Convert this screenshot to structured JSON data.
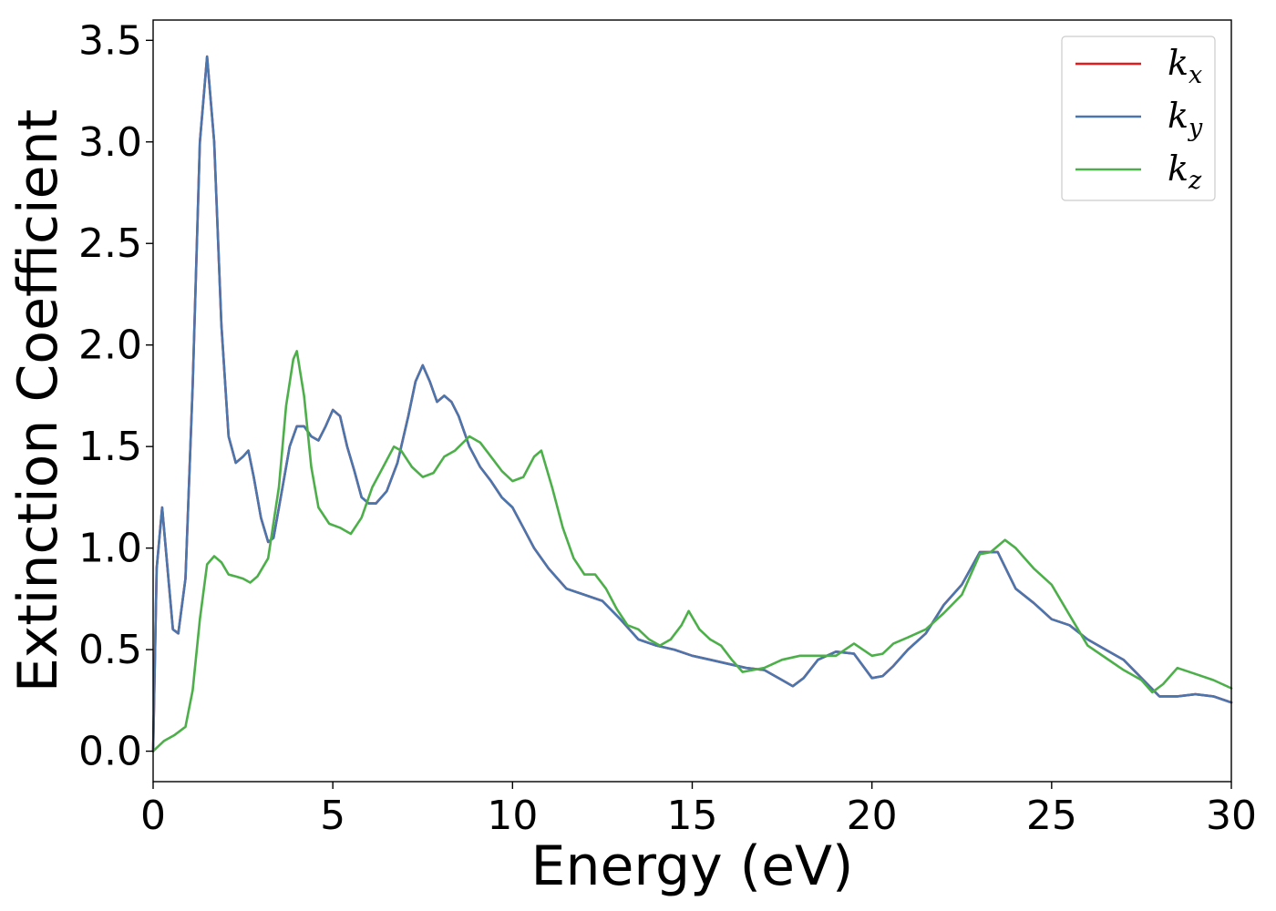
{
  "chart_data": {
    "type": "line",
    "xlabel": "Energy (eV)",
    "ylabel": "Extinction Coefficient",
    "xlim": [
      0,
      30
    ],
    "ylim": [
      -0.15,
      3.6
    ],
    "xticks": [
      0,
      5,
      10,
      15,
      20,
      25,
      30
    ],
    "xtick_labels": [
      "0",
      "5",
      "10",
      "15",
      "20",
      "25",
      "30"
    ],
    "yticks": [
      0.0,
      0.5,
      1.0,
      1.5,
      2.0,
      2.5,
      3.0,
      3.5
    ],
    "ytick_labels": [
      "0.0",
      "0.5",
      "1.0",
      "1.5",
      "2.0",
      "2.5",
      "3.0",
      "3.5"
    ],
    "grid": false,
    "legend_position": "top-right",
    "series": [
      {
        "name": "k",
        "subscript": "x",
        "color": "#e41a1c",
        "x": [
          0,
          0.1,
          0.25,
          0.4,
          0.55,
          0.7,
          0.9,
          1.1,
          1.3,
          1.5,
          1.7,
          1.9,
          2.1,
          2.3,
          2.5,
          2.65,
          2.8,
          3.0,
          3.2,
          3.35,
          3.6,
          3.8,
          4.0,
          4.2,
          4.4,
          4.6,
          4.8,
          5.0,
          5.2,
          5.4,
          5.6,
          5.8,
          6.0,
          6.2,
          6.5,
          6.8,
          7.1,
          7.3,
          7.5,
          7.7,
          7.9,
          8.1,
          8.3,
          8.5,
          8.8,
          9.1,
          9.4,
          9.7,
          10.0,
          10.3,
          10.6,
          11.0,
          11.5,
          12.0,
          12.5,
          13.0,
          13.5,
          14.0,
          14.5,
          15.0,
          15.5,
          16.0,
          16.5,
          17.0,
          17.5,
          17.8,
          18.1,
          18.5,
          19.0,
          19.5,
          20.0,
          20.3,
          20.6,
          21.0,
          21.5,
          22.0,
          22.5,
          23.0,
          23.5,
          24.0,
          24.5,
          25.0,
          25.5,
          26.0,
          26.5,
          27.0,
          27.5,
          28.0,
          28.5,
          29.0,
          29.5,
          30.0
        ],
        "y": [
          0.0,
          0.9,
          1.2,
          0.9,
          0.6,
          0.58,
          0.85,
          1.8,
          3.0,
          3.42,
          3.0,
          2.1,
          1.55,
          1.42,
          1.45,
          1.48,
          1.35,
          1.15,
          1.03,
          1.05,
          1.3,
          1.5,
          1.6,
          1.6,
          1.55,
          1.53,
          1.6,
          1.68,
          1.65,
          1.5,
          1.38,
          1.25,
          1.22,
          1.22,
          1.28,
          1.42,
          1.65,
          1.82,
          1.9,
          1.82,
          1.72,
          1.75,
          1.72,
          1.65,
          1.5,
          1.4,
          1.33,
          1.25,
          1.2,
          1.1,
          1.0,
          0.9,
          0.8,
          0.77,
          0.74,
          0.65,
          0.55,
          0.52,
          0.5,
          0.47,
          0.45,
          0.43,
          0.41,
          0.4,
          0.35,
          0.32,
          0.36,
          0.45,
          0.49,
          0.48,
          0.36,
          0.37,
          0.42,
          0.5,
          0.58,
          0.72,
          0.82,
          0.98,
          0.98,
          0.8,
          0.73,
          0.65,
          0.62,
          0.55,
          0.5,
          0.45,
          0.36,
          0.27,
          0.27,
          0.28,
          0.27,
          0.24
        ]
      },
      {
        "name": "k",
        "subscript": "y",
        "color": "#4a76ad",
        "x": [
          0,
          0.1,
          0.25,
          0.4,
          0.55,
          0.7,
          0.9,
          1.1,
          1.3,
          1.5,
          1.7,
          1.9,
          2.1,
          2.3,
          2.5,
          2.65,
          2.8,
          3.0,
          3.2,
          3.35,
          3.6,
          3.8,
          4.0,
          4.2,
          4.4,
          4.6,
          4.8,
          5.0,
          5.2,
          5.4,
          5.6,
          5.8,
          6.0,
          6.2,
          6.5,
          6.8,
          7.1,
          7.3,
          7.5,
          7.7,
          7.9,
          8.1,
          8.3,
          8.5,
          8.8,
          9.1,
          9.4,
          9.7,
          10.0,
          10.3,
          10.6,
          11.0,
          11.5,
          12.0,
          12.5,
          13.0,
          13.5,
          14.0,
          14.5,
          15.0,
          15.5,
          16.0,
          16.5,
          17.0,
          17.5,
          17.8,
          18.1,
          18.5,
          19.0,
          19.5,
          20.0,
          20.3,
          20.6,
          21.0,
          21.5,
          22.0,
          22.5,
          23.0,
          23.5,
          24.0,
          24.5,
          25.0,
          25.5,
          26.0,
          26.5,
          27.0,
          27.5,
          28.0,
          28.5,
          29.0,
          29.5,
          30.0
        ],
        "y": [
          0.0,
          0.9,
          1.2,
          0.9,
          0.6,
          0.58,
          0.85,
          1.8,
          3.0,
          3.42,
          3.0,
          2.1,
          1.55,
          1.42,
          1.45,
          1.48,
          1.35,
          1.15,
          1.03,
          1.05,
          1.3,
          1.5,
          1.6,
          1.6,
          1.55,
          1.53,
          1.6,
          1.68,
          1.65,
          1.5,
          1.38,
          1.25,
          1.22,
          1.22,
          1.28,
          1.42,
          1.65,
          1.82,
          1.9,
          1.82,
          1.72,
          1.75,
          1.72,
          1.65,
          1.5,
          1.4,
          1.33,
          1.25,
          1.2,
          1.1,
          1.0,
          0.9,
          0.8,
          0.77,
          0.74,
          0.65,
          0.55,
          0.52,
          0.5,
          0.47,
          0.45,
          0.43,
          0.41,
          0.4,
          0.35,
          0.32,
          0.36,
          0.45,
          0.49,
          0.48,
          0.36,
          0.37,
          0.42,
          0.5,
          0.58,
          0.72,
          0.82,
          0.98,
          0.98,
          0.8,
          0.73,
          0.65,
          0.62,
          0.55,
          0.5,
          0.45,
          0.36,
          0.27,
          0.27,
          0.28,
          0.27,
          0.24
        ]
      },
      {
        "name": "k",
        "subscript": "z",
        "color": "#4daf4a",
        "x": [
          0,
          0.3,
          0.6,
          0.9,
          1.1,
          1.3,
          1.5,
          1.7,
          1.9,
          2.1,
          2.3,
          2.5,
          2.7,
          2.9,
          3.2,
          3.5,
          3.7,
          3.9,
          4.0,
          4.2,
          4.4,
          4.6,
          4.9,
          5.2,
          5.5,
          5.8,
          6.1,
          6.4,
          6.7,
          6.9,
          7.2,
          7.5,
          7.8,
          8.1,
          8.4,
          8.8,
          9.1,
          9.4,
          9.7,
          10.0,
          10.3,
          10.6,
          10.8,
          11.1,
          11.4,
          11.7,
          12.0,
          12.3,
          12.6,
          12.9,
          13.2,
          13.5,
          13.8,
          14.1,
          14.4,
          14.7,
          14.9,
          15.2,
          15.5,
          15.8,
          16.1,
          16.4,
          16.7,
          17.0,
          17.5,
          18.0,
          18.5,
          19.0,
          19.5,
          20.0,
          20.3,
          20.6,
          21.0,
          21.5,
          22.0,
          22.5,
          23.0,
          23.3,
          23.7,
          24.0,
          24.5,
          25.0,
          25.5,
          26.0,
          26.5,
          27.0,
          27.5,
          27.8,
          28.1,
          28.5,
          29.0,
          29.5,
          30.0
        ],
        "y": [
          0.0,
          0.05,
          0.08,
          0.12,
          0.3,
          0.65,
          0.92,
          0.96,
          0.93,
          0.87,
          0.86,
          0.85,
          0.83,
          0.86,
          0.95,
          1.3,
          1.7,
          1.93,
          1.97,
          1.75,
          1.4,
          1.2,
          1.12,
          1.1,
          1.07,
          1.15,
          1.3,
          1.4,
          1.5,
          1.48,
          1.4,
          1.35,
          1.37,
          1.45,
          1.48,
          1.55,
          1.52,
          1.45,
          1.38,
          1.33,
          1.35,
          1.45,
          1.48,
          1.3,
          1.1,
          0.95,
          0.87,
          0.87,
          0.8,
          0.7,
          0.62,
          0.6,
          0.55,
          0.52,
          0.55,
          0.62,
          0.69,
          0.6,
          0.55,
          0.52,
          0.45,
          0.39,
          0.4,
          0.41,
          0.45,
          0.47,
          0.47,
          0.47,
          0.53,
          0.47,
          0.48,
          0.53,
          0.56,
          0.6,
          0.68,
          0.77,
          0.97,
          0.98,
          1.04,
          1.0,
          0.9,
          0.82,
          0.67,
          0.52,
          0.46,
          0.4,
          0.35,
          0.29,
          0.33,
          0.41,
          0.38,
          0.35,
          0.31
        ]
      }
    ]
  }
}
